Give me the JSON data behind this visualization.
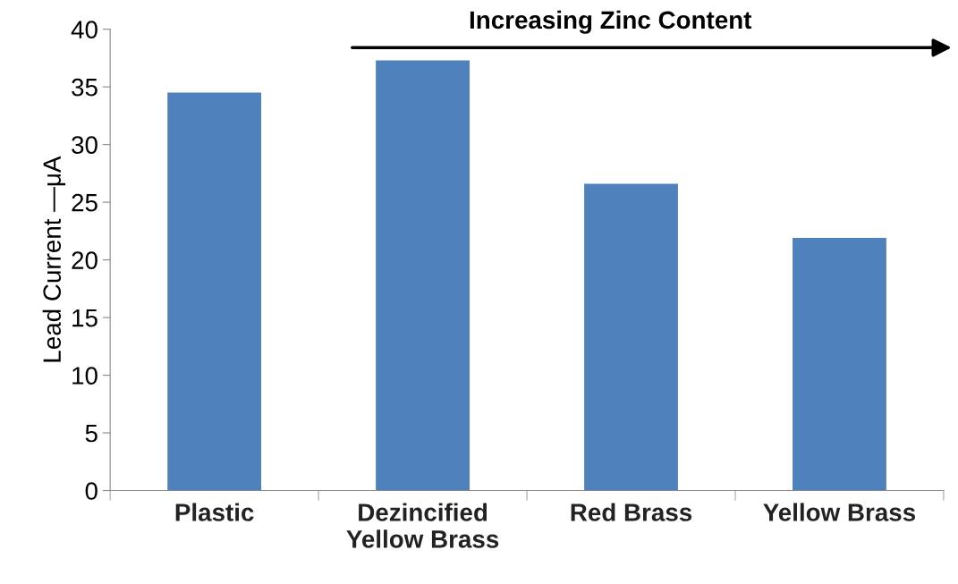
{
  "chart_data": {
    "type": "bar",
    "ylabel": "Lead Current —μA",
    "categories": [
      "Plastic",
      "Dezincified\nYellow Brass",
      "Red Brass",
      "Yellow Brass"
    ],
    "values": [
      34.5,
      37.3,
      26.6,
      21.9
    ],
    "color": "#4f81bd",
    "ylim": [
      0,
      40
    ],
    "yticks": [
      0,
      5,
      10,
      15,
      20,
      25,
      30,
      35,
      40
    ],
    "grid": false,
    "annotations": [
      "Increasing Zinc Content"
    ]
  }
}
